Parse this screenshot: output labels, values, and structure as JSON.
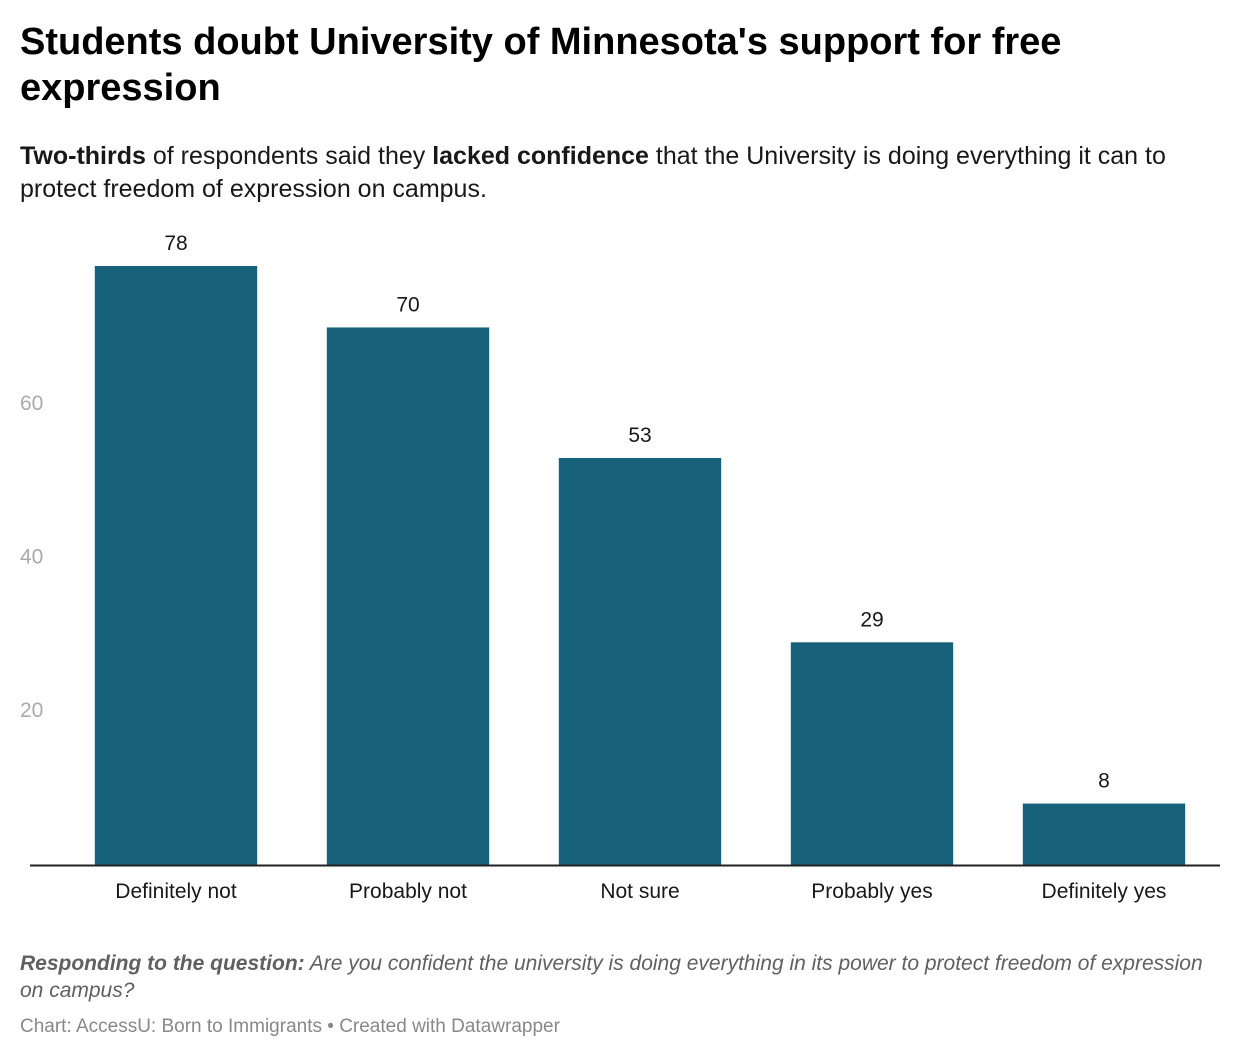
{
  "header": {
    "title": "Students doubt University of Minnesota's support for free expression",
    "subtitle_bold1": "Two-thirds",
    "subtitle_text1": " of respondents said they ",
    "subtitle_bold2": "lacked confidence",
    "subtitle_text2": " that the University is doing everything it can to protect freedom of expression on campus."
  },
  "footer": {
    "note_label": "Responding to the question:",
    "note_text": " Are you confident the university is doing everything in its power to protect freedom of expression on campus?",
    "credit": "Chart: AccessU: Born to Immigrants • Created with Datawrapper"
  },
  "chart_data": {
    "type": "bar",
    "categories": [
      "Definitely not",
      "Probably not",
      "Not sure",
      "Probably yes",
      "Definitely yes"
    ],
    "values": [
      78,
      70,
      53,
      29,
      8
    ],
    "yticks": [
      20,
      40,
      60
    ],
    "ylim": [
      0,
      78
    ],
    "grid": false,
    "bar_color": "#18617b",
    "axis_label_color": "#aaaaaa"
  }
}
